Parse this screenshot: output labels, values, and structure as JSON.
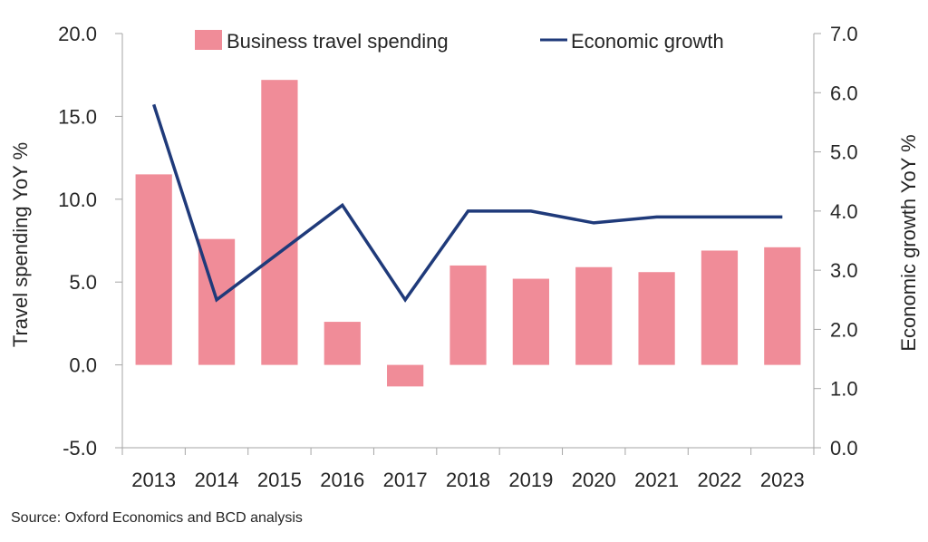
{
  "chart_data": {
    "type": "bar+line",
    "categories": [
      "2013",
      "2014",
      "2015",
      "2016",
      "2017",
      "2018",
      "2019",
      "2020",
      "2021",
      "2022",
      "2023"
    ],
    "series": [
      {
        "name": "Business travel spending",
        "type": "bar",
        "axis": "left",
        "values": [
          11.5,
          7.6,
          17.2,
          2.6,
          -1.3,
          6.0,
          5.2,
          5.9,
          5.6,
          6.9,
          7.1
        ]
      },
      {
        "name": "Economic growth",
        "type": "line",
        "axis": "right",
        "values": [
          5.8,
          2.5,
          3.3,
          4.1,
          2.5,
          4.0,
          4.0,
          3.8,
          3.9,
          3.9,
          3.9
        ]
      }
    ],
    "ylabel": "Travel spending YoY %",
    "y2label": "Economic growth YoY %",
    "ylim": [
      -5,
      20
    ],
    "y2lim": [
      0,
      7
    ],
    "yticks": [
      "-5.0",
      "0.0",
      "5.0",
      "10.0",
      "15.0",
      "20.0"
    ],
    "y2ticks": [
      "0.0",
      "1.0",
      "2.0",
      "3.0",
      "4.0",
      "5.0",
      "6.0",
      "7.0"
    ],
    "legend_position": "top",
    "grid": false,
    "colors": {
      "bar": "#F08C98",
      "line": "#1F3A7A",
      "axis": "#A6A6A6"
    }
  },
  "source": "Source: Oxford Economics and BCD analysis"
}
